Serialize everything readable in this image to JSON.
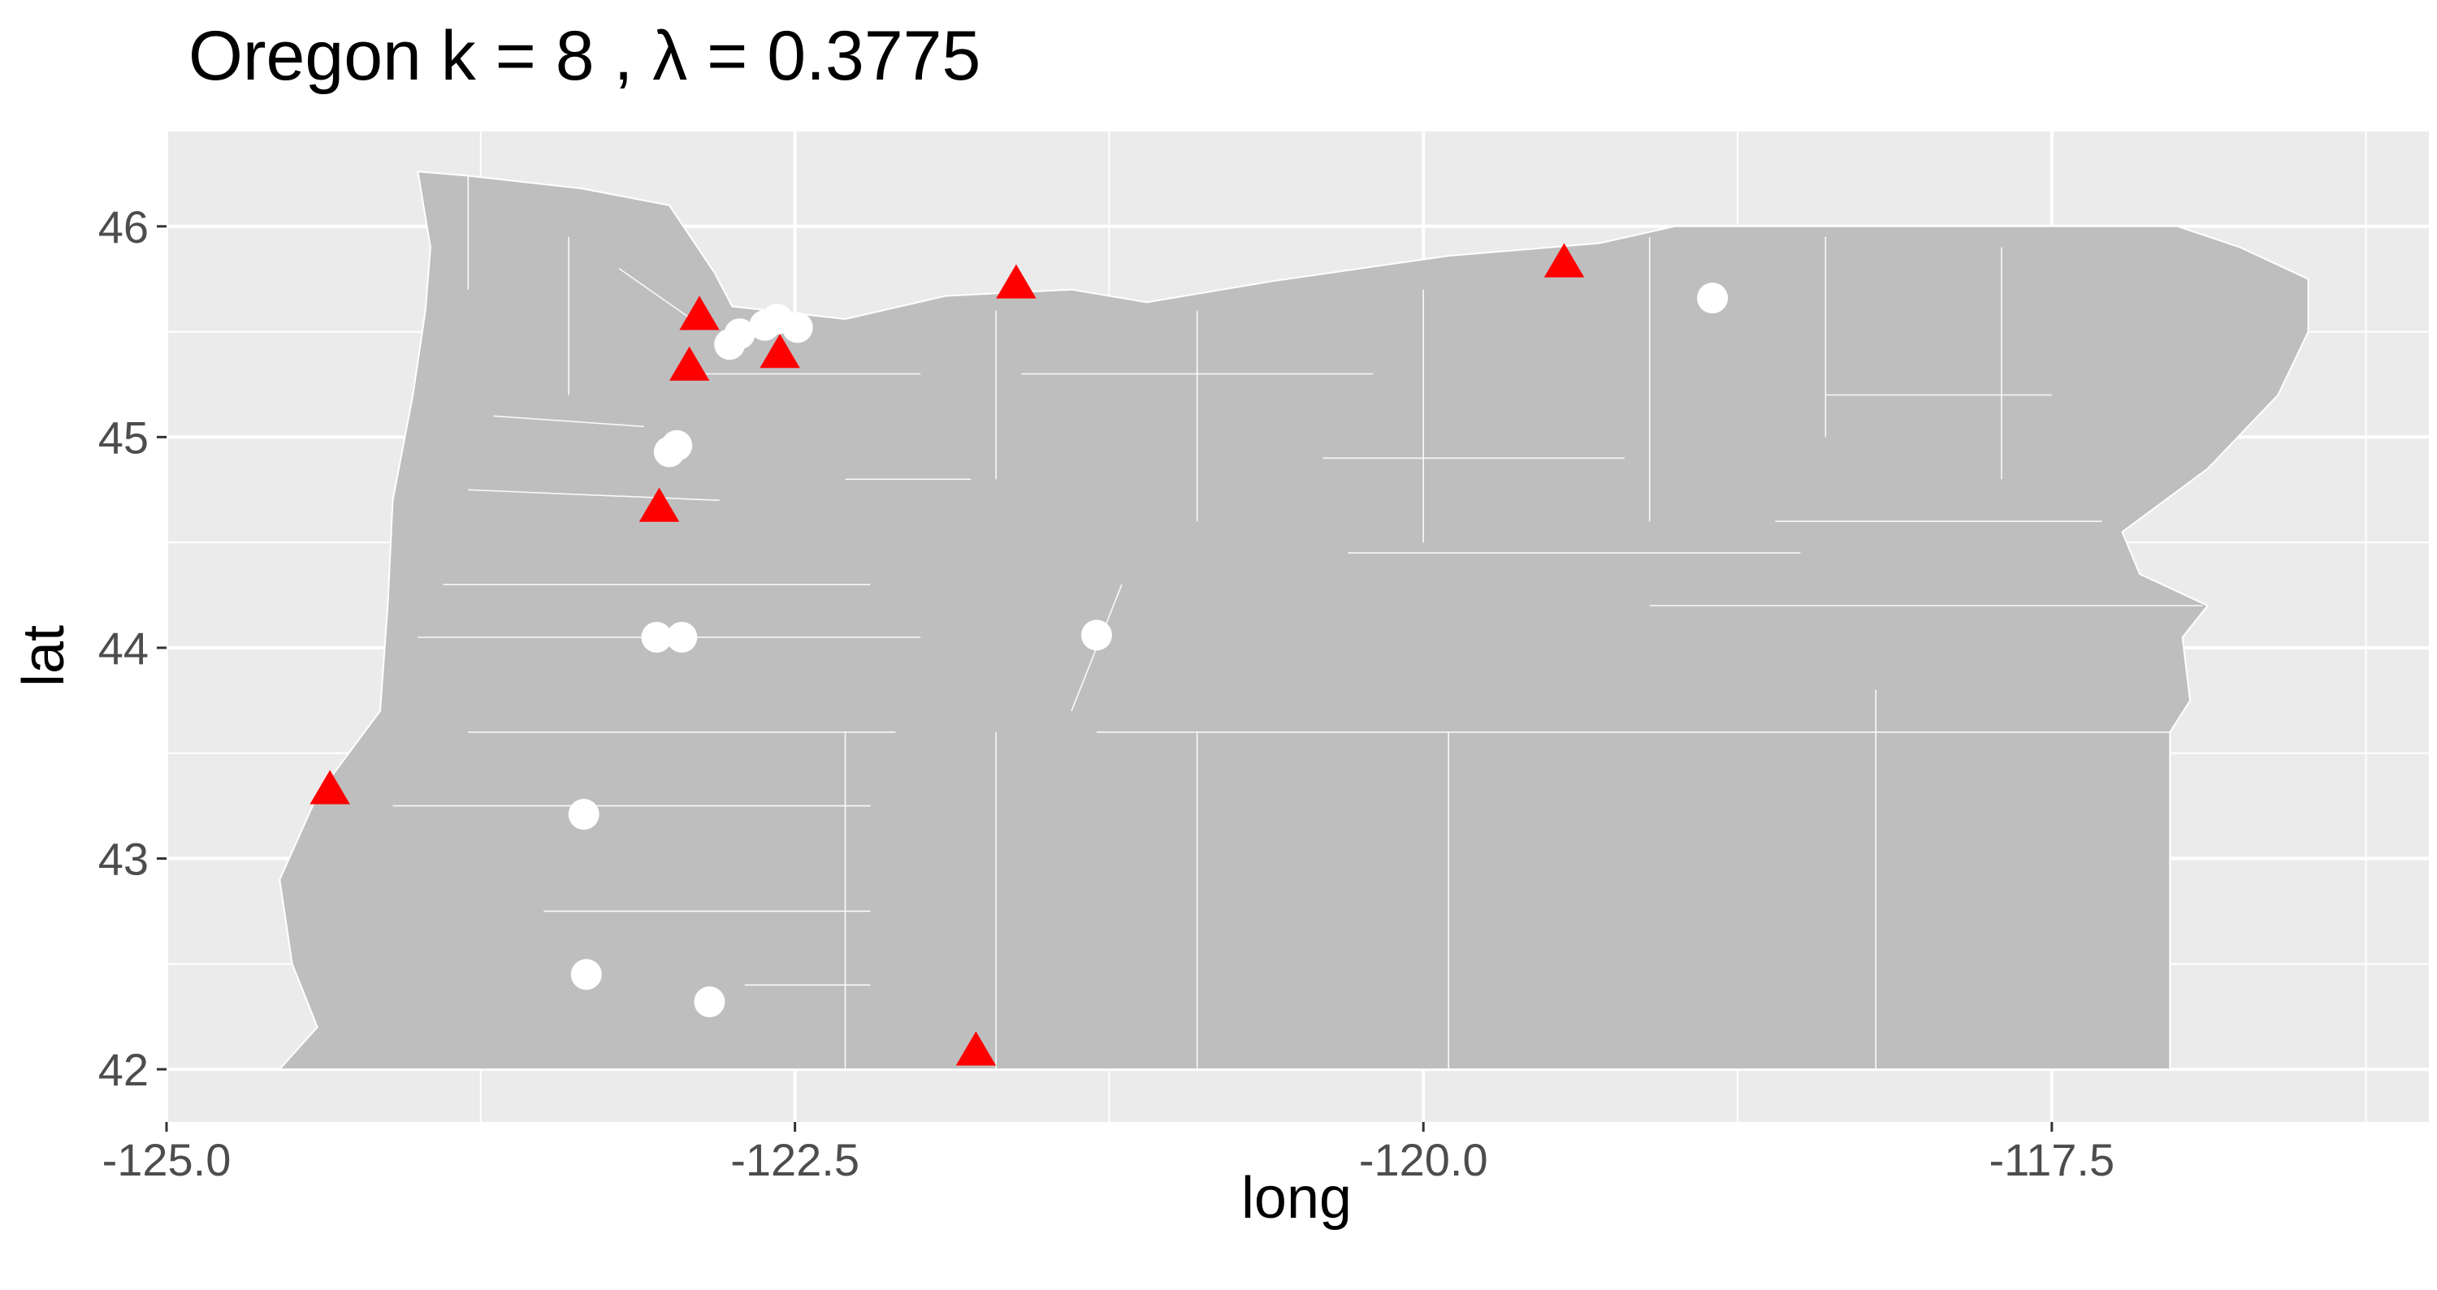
{
  "title": "Oregon  k =  8 ,  λ  =  0.3775",
  "chart_data": {
    "type": "scatter",
    "xlabel": "long",
    "ylabel": "lat",
    "xlim": [
      -125.0,
      -116.0
    ],
    "ylim": [
      41.75,
      46.45
    ],
    "x_ticks": [
      -125.0,
      -122.5,
      -120.0,
      -117.5
    ],
    "x_tick_labels": [
      "-125.0",
      "-122.5",
      "-120.0",
      "-117.5"
    ],
    "y_ticks": [
      42,
      43,
      44,
      45,
      46
    ],
    "y_tick_labels": [
      "42",
      "43",
      "44",
      "45",
      "46"
    ],
    "grid": true,
    "basemap": "Oregon county / tract boundaries",
    "colors": {
      "panel": "#ebebeb",
      "grid": "#ffffff",
      "land": "#bebebe",
      "boundary": "#ffffff",
      "triangle": "#ff0000",
      "circle": "#ffffff"
    },
    "series": [
      {
        "shape": "triangle",
        "x": [
          -124.35,
          -122.88,
          -122.92,
          -122.56,
          -123.04,
          -121.62,
          -119.44,
          -121.78
        ],
        "y": [
          43.32,
          45.57,
          45.33,
          45.39,
          44.66,
          45.72,
          45.82,
          42.08
        ]
      },
      {
        "shape": "circle",
        "x": [
          -122.72,
          -122.62,
          -122.57,
          -122.49,
          -122.76,
          -123.0,
          -122.97,
          -123.05,
          -122.95,
          -121.3,
          -123.34,
          -123.33,
          -122.84,
          -118.85
        ],
        "y": [
          45.49,
          45.53,
          45.56,
          45.52,
          45.44,
          44.93,
          44.96,
          44.05,
          44.05,
          44.06,
          43.21,
          42.45,
          42.32,
          45.66
        ]
      }
    ]
  }
}
